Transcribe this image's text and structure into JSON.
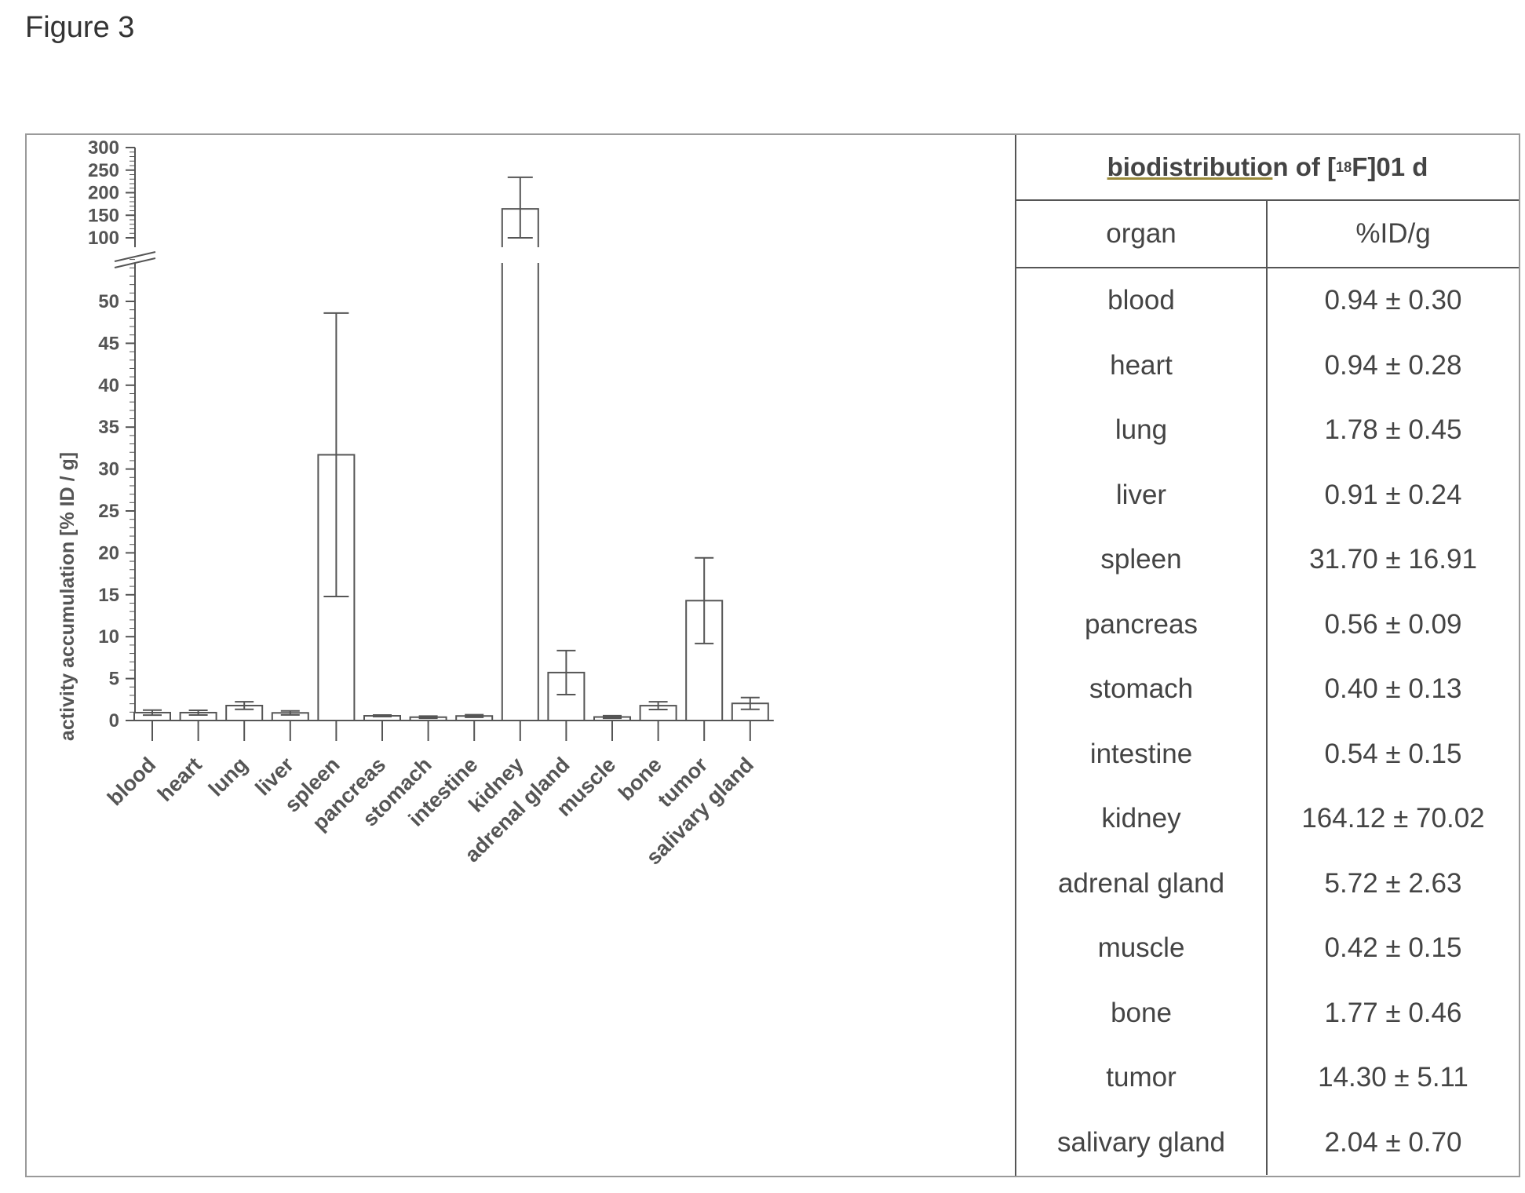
{
  "figure_label": "Figure 3",
  "chart_data": {
    "type": "bar",
    "ylabel": "activity accumulation [% ID / g]",
    "categories": [
      "blood",
      "heart",
      "lung",
      "liver",
      "spleen",
      "pancreas",
      "stomach",
      "intestine",
      "kidney",
      "adrenal gland",
      "muscle",
      "bone",
      "tumor",
      "salivary gland"
    ],
    "values": [
      0.94,
      0.94,
      1.78,
      0.91,
      31.7,
      0.56,
      0.4,
      0.54,
      164.12,
      5.72,
      0.42,
      1.77,
      14.3,
      2.04
    ],
    "errors": [
      0.3,
      0.28,
      0.45,
      0.24,
      16.91,
      0.09,
      0.13,
      0.15,
      70.02,
      2.63,
      0.15,
      0.46,
      5.11,
      0.7
    ],
    "lower_ticks": [
      0,
      5,
      10,
      15,
      20,
      25,
      30,
      35,
      40,
      45,
      50
    ],
    "upper_ticks": [
      100,
      150,
      200,
      250,
      300
    ],
    "lower_range": [
      0,
      55
    ],
    "upper_range": [
      100,
      300
    ],
    "broken_axis": true,
    "error_bars": true
  },
  "table": {
    "title_underlined": "biodistributio",
    "title_rest_before_sup": "n of [",
    "title_sup": "18",
    "title_rest_after_sup": "F]01 d",
    "col_organ": "organ",
    "col_value": "%ID/g",
    "rows": [
      {
        "organ": "blood",
        "value": "0.94 ± 0.30"
      },
      {
        "organ": "heart",
        "value": "0.94 ± 0.28"
      },
      {
        "organ": "lung",
        "value": "1.78 ± 0.45"
      },
      {
        "organ": "liver",
        "value": "0.91 ± 0.24"
      },
      {
        "organ": "spleen",
        "value": "31.70 ± 16.91"
      },
      {
        "organ": "pancreas",
        "value": "0.56 ± 0.09"
      },
      {
        "organ": "stomach",
        "value": "0.40 ± 0.13"
      },
      {
        "organ": "intestine",
        "value": "0.54 ± 0.15"
      },
      {
        "organ": "kidney",
        "value": "164.12 ± 70.02"
      },
      {
        "organ": "adrenal gland",
        "value": "5.72 ± 2.63"
      },
      {
        "organ": "muscle",
        "value": "0.42 ± 0.15"
      },
      {
        "organ": "bone",
        "value": "1.77 ± 0.46"
      },
      {
        "organ": "tumor",
        "value": "14.30 ± 5.11"
      },
      {
        "organ": "salivary gland",
        "value": "2.04 ± 0.70"
      }
    ]
  }
}
